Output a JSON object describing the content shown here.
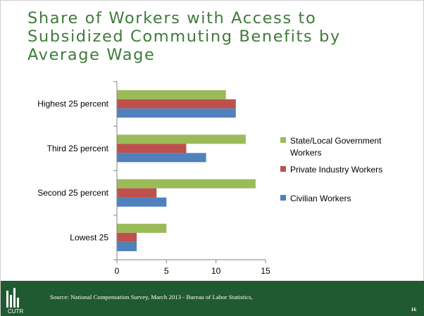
{
  "title_lines": [
    "Share of Workers with Access to",
    "Subsidized Commuting Benefits by",
    "Average Wage"
  ],
  "footer": {
    "source": "Source: National Compensation Survey, March 2013 - Bureau of Labor Statistics,",
    "slide_number": "16",
    "logo_text": "CUTR"
  },
  "chart_data": {
    "type": "bar",
    "orientation": "horizontal",
    "categories": [
      "Highest 25 percent",
      "Third 25 percent",
      "Second 25 percent",
      "Lowest 25"
    ],
    "series": [
      {
        "name": "State/Local Government Workers",
        "legend_lines": [
          "State/Local Government",
          "Workers"
        ],
        "color": "#9bbb59",
        "values": [
          11,
          13,
          14,
          5
        ]
      },
      {
        "name": "Private Industry Workers",
        "legend_lines": [
          "Private Industry Workers"
        ],
        "color": "#c0504d",
        "values": [
          12,
          7,
          4,
          2
        ]
      },
      {
        "name": "Civilian Workers",
        "legend_lines": [
          "Civilian Workers"
        ],
        "color": "#4f81bd",
        "values": [
          12,
          9,
          5,
          2
        ]
      }
    ],
    "xlim": [
      0,
      15
    ],
    "xticks": [
      0,
      5,
      10,
      15
    ],
    "xlabel": "",
    "ylabel": "",
    "title": "",
    "grid": false,
    "legend_position": "right"
  },
  "colors": {
    "title": "#3f7b3a",
    "footer": "#1f5a31"
  }
}
